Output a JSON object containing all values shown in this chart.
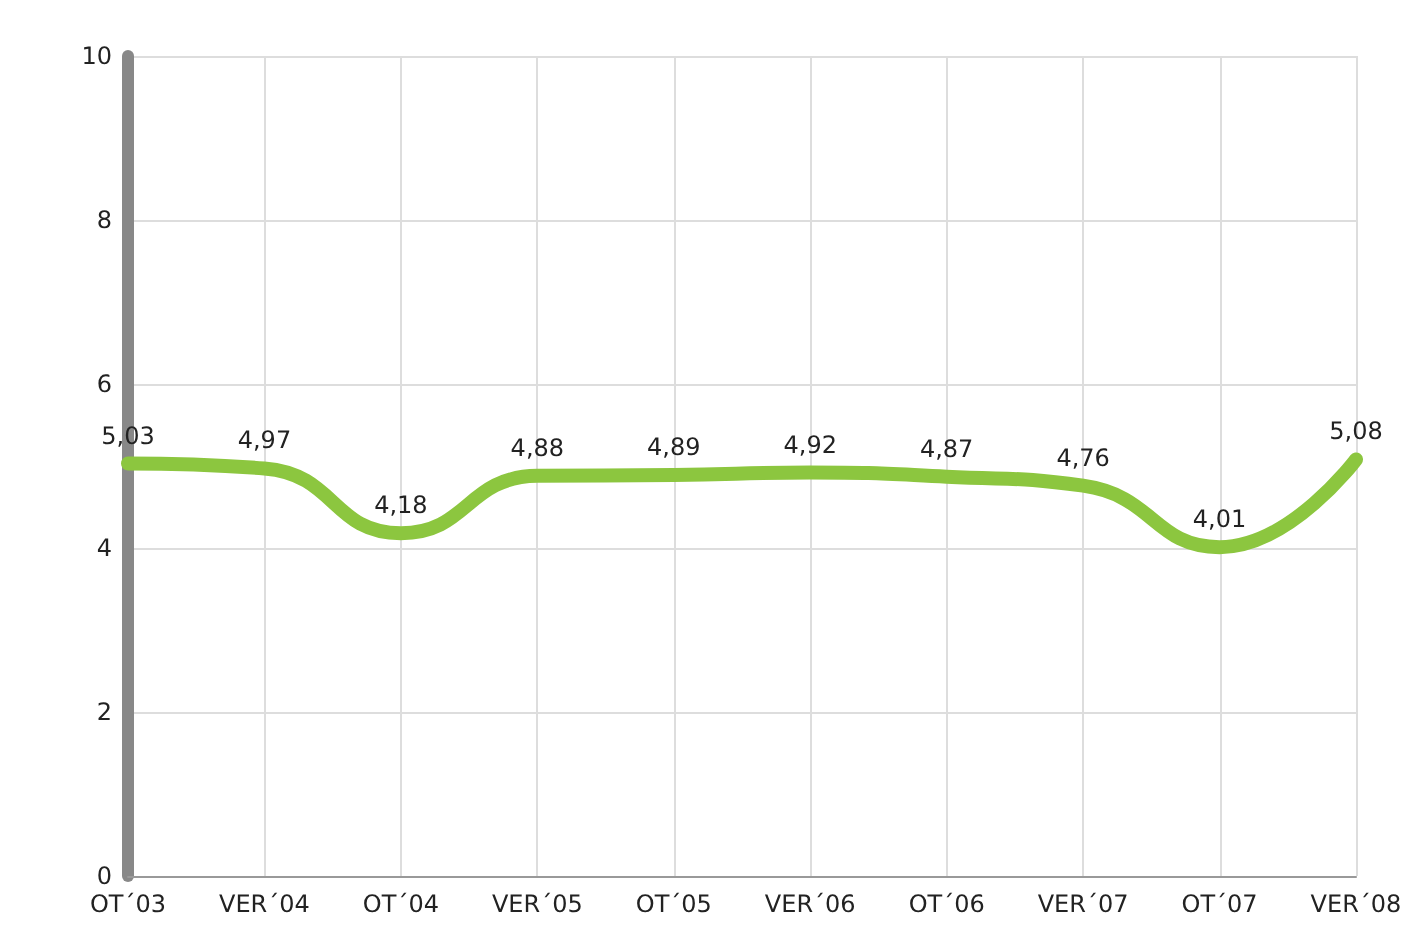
{
  "chart_data": {
    "type": "line",
    "categories": [
      "OT´03",
      "VER´04",
      "OT´04",
      "VER´05",
      "OT´05",
      "VER´06",
      "OT´06",
      "VER´07",
      "OT´07",
      "VER´08"
    ],
    "series": [
      {
        "color": "#8cc63f",
        "values": [
          5.03,
          4.97,
          4.18,
          4.88,
          4.89,
          4.92,
          4.87,
          4.76,
          4.01,
          5.08
        ],
        "value_labels": [
          "5,03",
          "4,97",
          "4,18",
          "4,88",
          "4,89",
          "4,92",
          "4,87",
          "4,76",
          "4,01",
          "5,08"
        ]
      }
    ],
    "ylim": [
      0,
      10
    ],
    "yticks": [
      0,
      2,
      4,
      6,
      8,
      10
    ],
    "grid": true,
    "marker": "none",
    "line_style": "solid"
  }
}
